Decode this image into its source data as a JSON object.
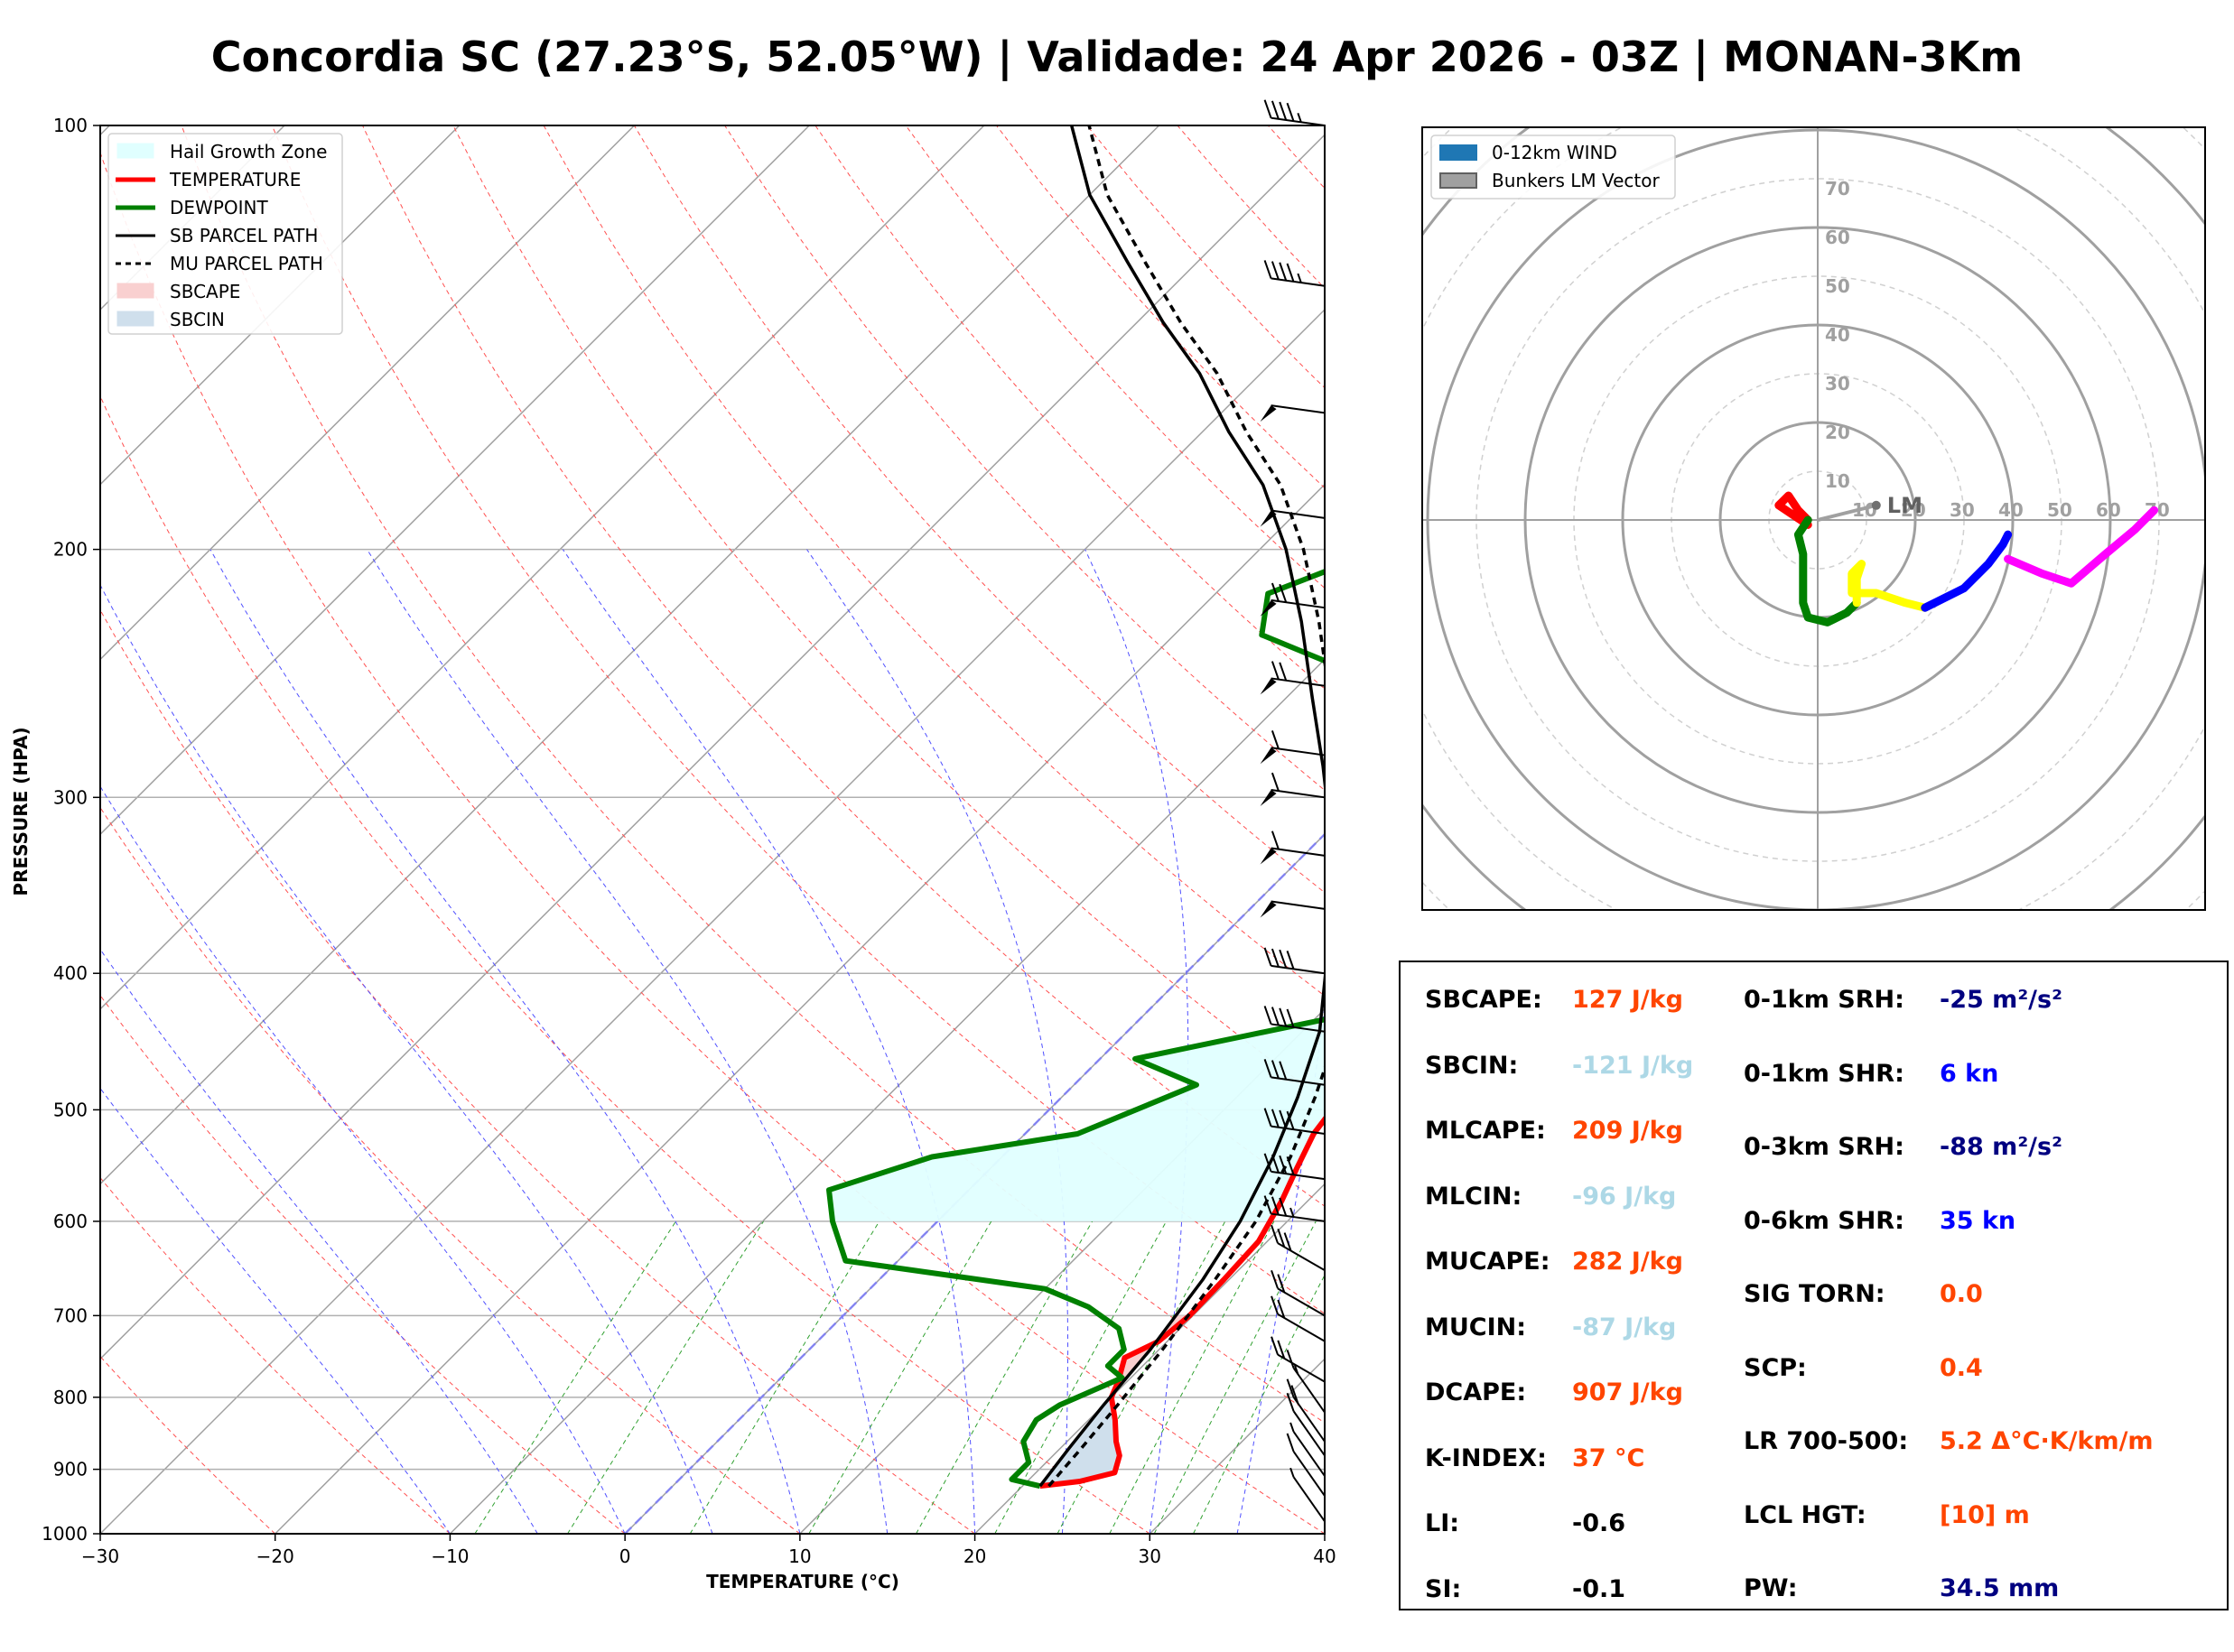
{
  "title": "Concordia SC (27.23°S, 52.05°W) | Validade: 24 Apr 2026 - 03Z | MONAN-3Km",
  "chart_data": [
    {
      "type": "line",
      "subtype": "skew-t log-p sounding",
      "xlabel": "TEMPERATURE (°C)",
      "ylabel": "PRESSURE (HPA)",
      "x_ticks": [
        -30,
        -20,
        -10,
        0,
        10,
        20,
        30,
        40
      ],
      "x_tick_labels": [
        "−30",
        "−20",
        "−10",
        "0",
        "10",
        "20",
        "30",
        "40"
      ],
      "y_ticks": [
        100,
        200,
        300,
        400,
        500,
        600,
        700,
        800,
        900,
        1000
      ],
      "xlim": [
        -30,
        40
      ],
      "ylim": [
        1000,
        100
      ],
      "y_scale": "log",
      "grid": true,
      "legend_position": "top-left",
      "legend": [
        {
          "label": "Hail Growth Zone",
          "color": "#e0ffff",
          "kind": "patch"
        },
        {
          "label": "TEMPERATURE",
          "color": "#ff0000",
          "kind": "line"
        },
        {
          "label": "DEWPOINT",
          "color": "#008000",
          "kind": "line"
        },
        {
          "label": "SB PARCEL PATH",
          "color": "#000000",
          "kind": "line"
        },
        {
          "label": "MU PARCEL PATH",
          "color": "#000000",
          "kind": "dashed"
        },
        {
          "label": "SBCAPE",
          "color": "#f9d0d0",
          "kind": "patch"
        },
        {
          "label": "SBCIN",
          "color": "#cfdfec",
          "kind": "patch"
        }
      ],
      "series": [
        {
          "name": "TEMPERATURE",
          "color": "#ff0000",
          "points": [
            [
              21.0,
              925
            ],
            [
              23.0,
              918
            ],
            [
              24.5,
              905
            ],
            [
              23.8,
              880
            ],
            [
              22.8,
              860
            ],
            [
              21.5,
              830
            ],
            [
              20.0,
              800
            ],
            [
              19.5,
              780
            ],
            [
              18.5,
              750
            ],
            [
              19.5,
              730
            ],
            [
              19.8,
              700
            ],
            [
              19.7,
              660
            ],
            [
              19.5,
              620
            ],
            [
              18.5,
              580
            ],
            [
              17.5,
              550
            ],
            [
              16.5,
              520
            ],
            [
              16.0,
              490
            ],
            [
              15.5,
              460
            ],
            [
              14.0,
              430
            ],
            [
              12.5,
              400
            ],
            [
              10.5,
              370
            ],
            [
              9.0,
              340
            ],
            [
              7.5,
              310
            ],
            [
              5.0,
              280
            ],
            [
              2.0,
              250
            ],
            [
              -1.0,
              225
            ],
            [
              -3.5,
              205
            ],
            [
              -5.5,
              190
            ],
            [
              -7.0,
              175
            ],
            [
              -8.5,
              160
            ],
            [
              -9.5,
              150
            ],
            [
              -10.5,
              140
            ],
            [
              -11.5,
              130
            ],
            [
              -12.5,
              120
            ],
            [
              -13.5,
              110
            ],
            [
              -14.0,
              100
            ]
          ]
        },
        {
          "name": "DEWPOINT",
          "color": "#008000",
          "points": [
            [
              21.0,
              925
            ],
            [
              19.0,
              915
            ],
            [
              19.0,
              890
            ],
            [
              17.5,
              860
            ],
            [
              17.0,
              830
            ],
            [
              17.5,
              810
            ],
            [
              19.5,
              775
            ],
            [
              18.0,
              760
            ],
            [
              18.0,
              740
            ],
            [
              16.5,
              715
            ],
            [
              13.5,
              690
            ],
            [
              10.0,
              670
            ],
            [
              -3.0,
              640
            ],
            [
              -6.0,
              600
            ],
            [
              -8.0,
              570
            ],
            [
              -4.0,
              540
            ],
            [
              3.0,
              520
            ],
            [
              7.0,
              480
            ],
            [
              2.0,
              460
            ],
            [
              11.0,
              430
            ],
            [
              10.5,
              400
            ],
            [
              10.5,
              370
            ],
            [
              9.5,
              340
            ],
            [
              10.5,
              310
            ],
            [
              8.5,
              290
            ],
            [
              4.0,
              270
            ],
            [
              -5.0,
              250
            ],
            [
              -15.0,
              230
            ],
            [
              -17.0,
              215
            ],
            [
              -13.0,
              200
            ],
            [
              -11.5,
              185
            ],
            [
              -11.5,
              170
            ],
            [
              -14.0,
              155
            ],
            [
              -15.0,
              140
            ],
            [
              -16.5,
              125
            ],
            [
              -15.0,
              115
            ],
            [
              -14.0,
              100
            ]
          ]
        },
        {
          "name": "SB PARCEL PATH",
          "color": "#000000",
          "dash": false,
          "points": [
            [
              21.0,
              925
            ],
            [
              20.5,
              870
            ],
            [
              20.0,
              810
            ],
            [
              19.5,
              740
            ],
            [
              18.5,
              660
            ],
            [
              17.3,
              600
            ],
            [
              15.5,
              540
            ],
            [
              13.5,
              490
            ],
            [
              11.0,
              440
            ],
            [
              8.0,
              400
            ],
            [
              4.5,
              360
            ],
            [
              0.5,
              320
            ],
            [
              -4.0,
              285
            ],
            [
              -8.5,
              255
            ],
            [
              -13.5,
              225
            ],
            [
              -18.5,
              200
            ],
            [
              -23.5,
              180
            ],
            [
              -28.5,
              165
            ],
            [
              -33.5,
              150
            ],
            [
              -38.5,
              138
            ],
            [
              -44.0,
              125
            ],
            [
              -50.0,
              112
            ],
            [
              -55.0,
              100
            ]
          ]
        },
        {
          "name": "MU PARCEL PATH",
          "color": "#000000",
          "dash": true,
          "points": [
            [
              21.5,
              925
            ],
            [
              21.2,
              870
            ],
            [
              20.8,
              810
            ],
            [
              20.2,
              740
            ],
            [
              19.2,
              660
            ],
            [
              18.2,
              600
            ],
            [
              16.5,
              540
            ],
            [
              14.5,
              490
            ],
            [
              12.0,
              440
            ],
            [
              9.0,
              400
            ],
            [
              5.5,
              360
            ],
            [
              1.5,
              320
            ],
            [
              -3.0,
              285
            ],
            [
              -7.5,
              255
            ],
            [
              -12.5,
              225
            ],
            [
              -17.5,
              200
            ],
            [
              -22.5,
              180
            ],
            [
              -27.5,
              165
            ],
            [
              -32.5,
              150
            ],
            [
              -37.5,
              138
            ],
            [
              -43.0,
              125
            ],
            [
              -49.0,
              112
            ],
            [
              -54.0,
              100
            ]
          ]
        }
      ],
      "hail_growth_zone_hpa": [
        430,
        600
      ],
      "wind_barbs": "right-edge profile"
    },
    {
      "type": "hodograph",
      "ring_labels": [
        "10",
        "20",
        "30",
        "40",
        "50",
        "60",
        "70"
      ],
      "annotation": "LM",
      "legend_position": "top-left",
      "legend": [
        {
          "label": "0-12km WIND",
          "color": "#1f77b4"
        },
        {
          "label": "Bunkers LM Vector",
          "color": "#a0a0a0"
        }
      ],
      "grid": true,
      "segments": [
        {
          "color": "#ff0000",
          "points": [
            [
              -2,
              -1
            ],
            [
              -5,
              1
            ],
            [
              -8,
              3
            ],
            [
              -6,
              5
            ],
            [
              -4,
              2
            ],
            [
              -2,
              0
            ]
          ]
        },
        {
          "color": "#008000",
          "points": [
            [
              -2,
              0
            ],
            [
              -4,
              -3
            ],
            [
              -3,
              -7
            ],
            [
              -3,
              -12
            ],
            [
              -3,
              -17
            ],
            [
              -2,
              -20
            ],
            [
              2,
              -21
            ],
            [
              6,
              -19
            ],
            [
              8,
              -17
            ]
          ]
        },
        {
          "color": "#ffff00",
          "points": [
            [
              8,
              -17
            ],
            [
              8,
              -12
            ],
            [
              9,
              -9
            ],
            [
              7,
              -11
            ],
            [
              7,
              -15
            ],
            [
              12,
              -15
            ],
            [
              18,
              -17
            ],
            [
              22,
              -18
            ]
          ]
        },
        {
          "color": "#0000ff",
          "points": [
            [
              22,
              -18
            ],
            [
              30,
              -14
            ],
            [
              35,
              -9
            ],
            [
              38,
              -5
            ],
            [
              39,
              -3
            ]
          ]
        },
        {
          "color": "#ff00ff",
          "points": [
            [
              39,
              -8
            ],
            [
              46,
              -11
            ],
            [
              52,
              -13
            ],
            [
              59,
              -7
            ],
            [
              65,
              -2
            ],
            [
              69,
              2
            ]
          ]
        }
      ],
      "lm_vector": [
        12,
        3
      ]
    }
  ],
  "stats": {
    "left": [
      {
        "label": "SBCAPE:",
        "value": "127 J/kg",
        "color": "#ff4500"
      },
      {
        "label": "SBCIN:",
        "value": "-121 J/kg",
        "color": "#add8e6"
      },
      {
        "label": "MLCAPE:",
        "value": "209 J/kg",
        "color": "#ff4500"
      },
      {
        "label": "MLCIN:",
        "value": "-96 J/kg",
        "color": "#add8e6"
      },
      {
        "label": "MUCAPE:",
        "value": "282 J/kg",
        "color": "#ff4500"
      },
      {
        "label": "MUCIN:",
        "value": "-87 J/kg",
        "color": "#add8e6"
      },
      {
        "label": "DCAPE:",
        "value": "907 J/kg",
        "color": "#ff4500"
      },
      {
        "label": "K-INDEX:",
        "value": "37 °C",
        "color": "#ff4500"
      },
      {
        "label": "LI:",
        "value": "-0.6",
        "color": "#000000"
      },
      {
        "label": "SI:",
        "value": "-0.1",
        "color": "#000000"
      }
    ],
    "right": [
      {
        "label": "0-1km SRH:",
        "value": "-25 m²/s²",
        "color": "#000080"
      },
      {
        "label": "0-1km SHR:",
        "value": "6 kn",
        "color": "#0000ff"
      },
      {
        "label": "0-3km SRH:",
        "value": "-88 m²/s²",
        "color": "#000080"
      },
      {
        "label": "0-6km SHR:",
        "value": "35 kn",
        "color": "#0000ff"
      },
      {
        "label": "SIG TORN:",
        "value": "0.0",
        "color": "#ff4500"
      },
      {
        "label": "SCP:",
        "value": "0.4",
        "color": "#ff4500"
      },
      {
        "label": "LR 700-500:",
        "value": "5.2 Δ°C·K/km/m",
        "color": "#ff4500"
      },
      {
        "label": "LCL HGT:",
        "value": "[10] m",
        "color": "#ff4500"
      },
      {
        "label": "PW:",
        "value": "34.5 mm",
        "color": "#000080"
      }
    ]
  }
}
